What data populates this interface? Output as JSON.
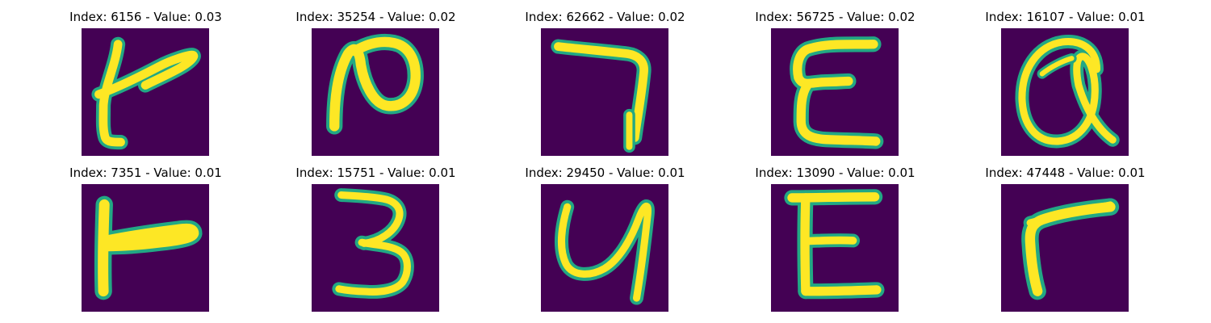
{
  "panels": [
    {
      "title": "Index: 6156 - Value: 0.03",
      "glyph": "handwritten-stroke-t"
    },
    {
      "title": "Index: 35254 - Value: 0.02",
      "glyph": "handwritten-stroke-n"
    },
    {
      "title": "Index: 62662 - Value: 0.02",
      "glyph": "handwritten-stroke-7"
    },
    {
      "title": "Index: 56725 - Value: 0.02",
      "glyph": "handwritten-stroke-e"
    },
    {
      "title": "Index: 16107 - Value: 0.01",
      "glyph": "handwritten-stroke-a"
    },
    {
      "title": "Index: 7351 - Value: 0.01",
      "glyph": "handwritten-stroke-t"
    },
    {
      "title": "Index: 15751 - Value: 0.01",
      "glyph": "handwritten-stroke-3"
    },
    {
      "title": "Index: 29450 - Value: 0.01",
      "glyph": "handwritten-stroke-y"
    },
    {
      "title": "Index: 13090 - Value: 0.01",
      "glyph": "handwritten-stroke-e"
    },
    {
      "title": "Index: 47448 - Value: 0.01",
      "glyph": "handwritten-stroke-r"
    }
  ],
  "colors": {
    "background": "#440154",
    "stroke_edge": "#22a884",
    "stroke_core": "#fde725"
  }
}
